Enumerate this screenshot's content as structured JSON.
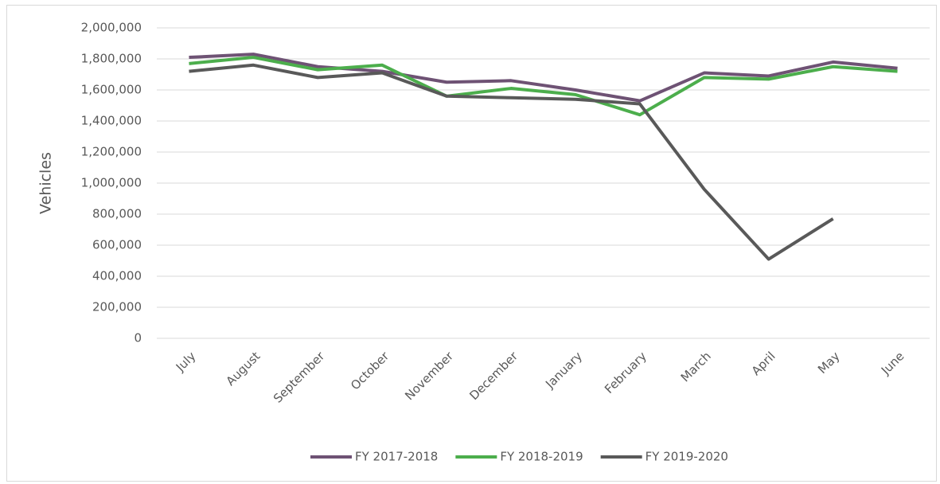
{
  "chart_data": {
    "type": "line",
    "y_label": "Vehicles",
    "categories": [
      "July",
      "August",
      "September",
      "October",
      "November",
      "December",
      "January",
      "February",
      "March",
      "April",
      "May",
      "June"
    ],
    "series": [
      {
        "name": "FY 2017-2018",
        "color": "#6e5274",
        "values": [
          1810000,
          1830000,
          1750000,
          1720000,
          1650000,
          1660000,
          1600000,
          1530000,
          1710000,
          1690000,
          1780000,
          1740000
        ]
      },
      {
        "name": "FY 2018-2019",
        "color": "#4cae4c",
        "values": [
          1770000,
          1810000,
          1730000,
          1760000,
          1560000,
          1610000,
          1570000,
          1440000,
          1680000,
          1670000,
          1750000,
          1720000
        ]
      },
      {
        "name": "FY 2019-2020",
        "color": "#595959",
        "values": [
          1720000,
          1760000,
          1680000,
          1710000,
          1560000,
          1550000,
          1540000,
          1510000,
          960000,
          510000,
          770000,
          null
        ]
      }
    ],
    "ylim": [
      0,
      2000000
    ],
    "yticks": [
      0,
      {
        "value": 200000,
        "label": "200,000"
      },
      {
        "value": 400000,
        "label": "400,000"
      },
      {
        "value": 600000,
        "label": "600,000"
      },
      {
        "value": 800000,
        "label": "800,000"
      },
      {
        "value": 1000000,
        "label": "1,000,000"
      },
      {
        "value": 1200000,
        "label": "1,200,000"
      },
      {
        "value": 1400000,
        "label": "1,400,000"
      },
      {
        "value": 1600000,
        "label": "1,600,000"
      },
      {
        "value": 1800000,
        "label": "1,800,000"
      },
      {
        "value": 2000000,
        "label": "2,000,000"
      }
    ],
    "grid": true,
    "legend": "bottom"
  }
}
